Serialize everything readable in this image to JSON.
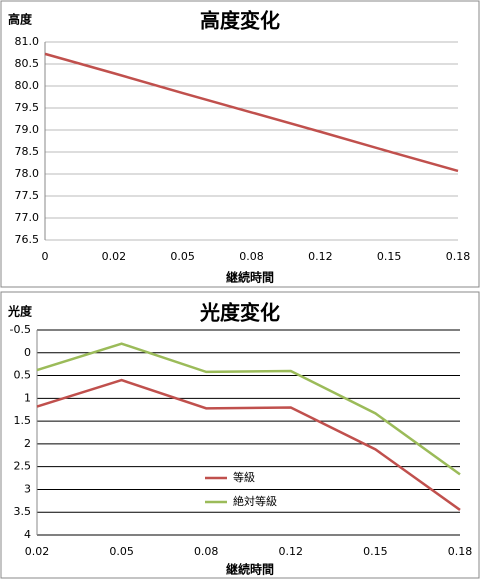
{
  "chart_data": [
    {
      "type": "line",
      "title": "高度変化",
      "y_label": "高度",
      "x_label": "継続時間",
      "categories": [
        "0",
        "0.02",
        "0.05",
        "0.08",
        "0.12",
        "0.15",
        "0.18"
      ],
      "values": [
        80.73,
        80.29,
        79.84,
        79.4,
        78.96,
        78.51,
        78.07
      ],
      "color": "#c0504d",
      "ylim": [
        76.5,
        81.0
      ],
      "yticks": [
        76.5,
        {
          "value": 77.0,
          "label": "77.0"
        },
        77.5,
        {
          "value": 78.0,
          "label": "78.0"
        },
        78.5,
        {
          "value": 79.0,
          "label": "79.0"
        },
        79.5,
        {
          "value": 80.0,
          "label": "80.0"
        },
        80.5,
        {
          "value": 81.0,
          "label": "81.0"
        }
      ],
      "grid": true
    },
    {
      "type": "line",
      "title": "光度変化",
      "y_label": "光度",
      "x_label": "継続時間",
      "categories": [
        "0.02",
        "0.05",
        "0.08",
        "0.12",
        "0.15",
        "0.18"
      ],
      "series": [
        {
          "name": "等級",
          "color": "#c0504d",
          "values": [
            1.18,
            0.6,
            1.22,
            1.2,
            2.12,
            3.45
          ]
        },
        {
          "name": "絶対等級",
          "color": "#9bbb59",
          "values": [
            0.38,
            -0.2,
            0.42,
            0.4,
            1.33,
            2.67
          ]
        }
      ],
      "ylim": [
        -0.5,
        4
      ],
      "yticks": [
        -0.5,
        0,
        0.5,
        1,
        1.5,
        2,
        2.5,
        3,
        3.5,
        4
      ],
      "y_inverted": true,
      "grid": true
    }
  ]
}
